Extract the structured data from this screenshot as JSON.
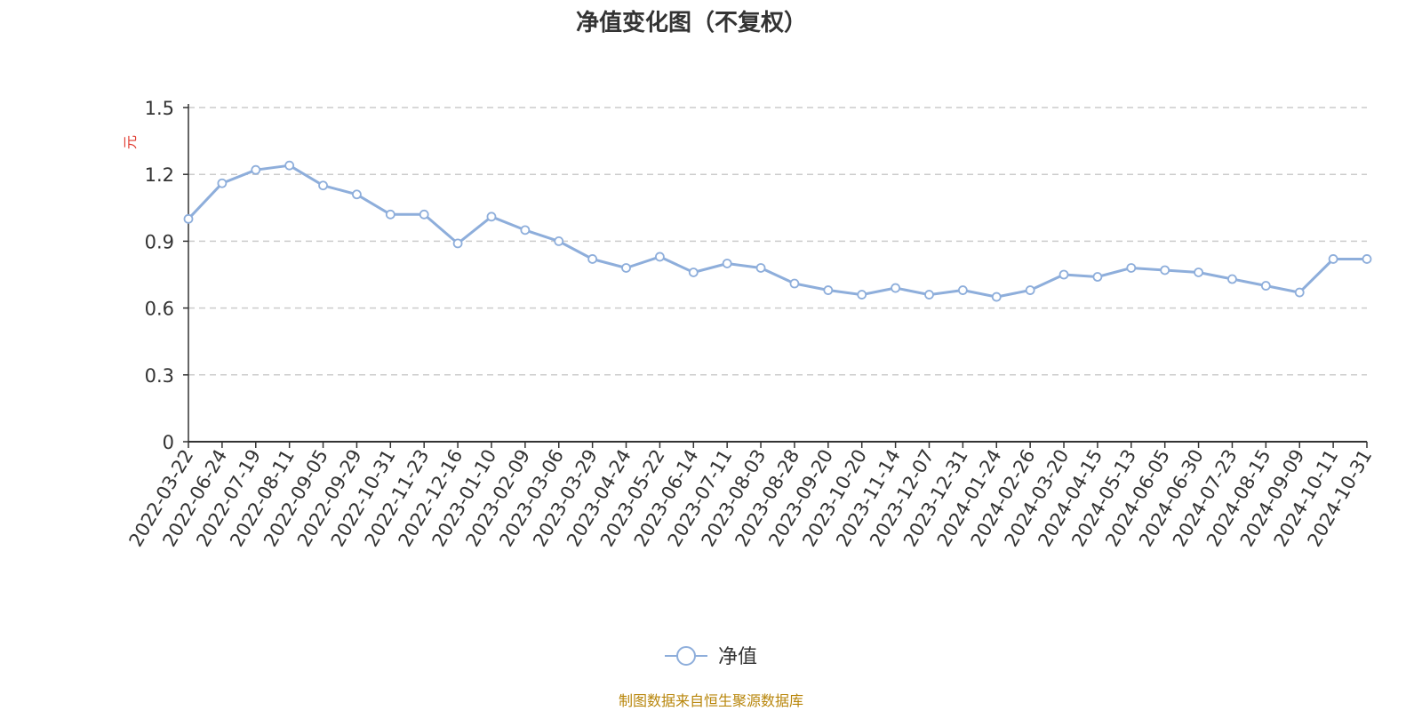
{
  "colors": {
    "line": "#8eaedb",
    "axis": "#333333",
    "grid": "#cccccc",
    "ylabel": "#e03c31",
    "source": "#b8860b"
  },
  "chart_data": {
    "type": "line",
    "title": "净值变化图（不复权）",
    "ylabel": "元",
    "ylim": [
      0,
      1.5
    ],
    "yticks": [
      "0",
      "0.3",
      "0.6",
      "0.9",
      "1.2",
      "1.5"
    ],
    "grid": true,
    "legend_position": "bottom-center",
    "series": [
      {
        "name": "净值",
        "x": [
          "2022-03-22",
          "2022-06-24",
          "2022-07-19",
          "2022-08-11",
          "2022-09-05",
          "2022-09-29",
          "2022-10-31",
          "2022-11-23",
          "2022-12-16",
          "2023-01-10",
          "2023-02-09",
          "2023-03-06",
          "2023-03-29",
          "2023-04-24",
          "2023-05-22",
          "2023-06-14",
          "2023-07-11",
          "2023-08-03",
          "2023-08-28",
          "2023-09-20",
          "2023-10-20",
          "2023-11-14",
          "2023-12-07",
          "2023-12-31",
          "2024-01-24",
          "2024-02-26",
          "2024-03-20",
          "2024-04-15",
          "2024-05-13",
          "2024-06-05",
          "2024-06-30",
          "2024-07-23",
          "2024-08-15",
          "2024-09-09",
          "2024-10-11",
          "2024-10-31"
        ],
        "values": [
          1.0,
          1.16,
          1.22,
          1.24,
          1.15,
          1.11,
          1.02,
          1.02,
          0.89,
          1.01,
          0.95,
          0.9,
          0.82,
          0.78,
          0.83,
          0.76,
          0.8,
          0.78,
          0.71,
          0.68,
          0.66,
          0.69,
          0.66,
          0.68,
          0.65,
          0.68,
          0.75,
          0.74,
          0.78,
          0.77,
          0.76,
          0.73,
          0.7,
          0.67,
          0.82,
          0.82
        ]
      }
    ]
  },
  "source_text": "制图数据来自恒生聚源数据库"
}
